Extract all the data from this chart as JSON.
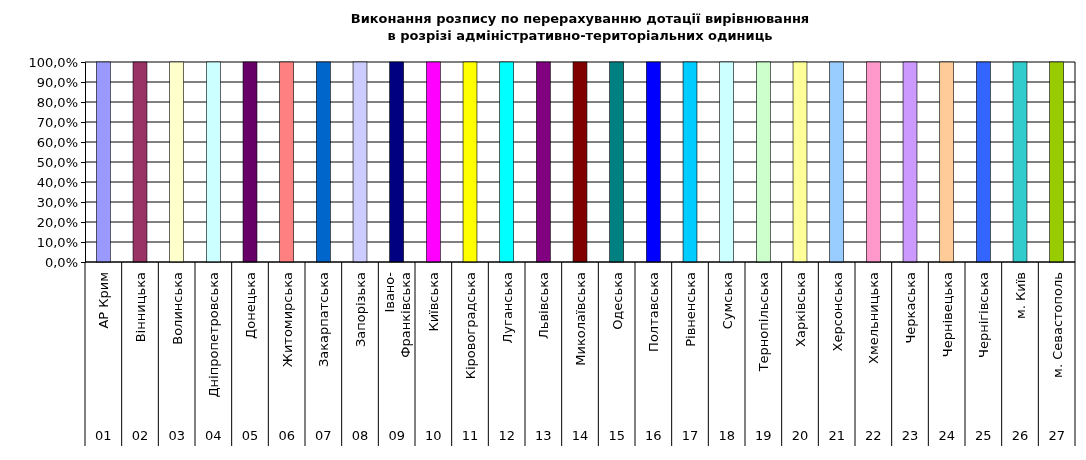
{
  "chart_data": {
    "type": "bar",
    "title": "Виконання розпису по перерахуванню дотації вирівнювання\nв розрізі адміністративно-територіальних одиниць",
    "categories": [
      "АР Крим",
      "Вінницька",
      "Волинська",
      "Дніпропетровська",
      "Донецька",
      "Житомирська",
      "Закарпатська",
      "Запорізька",
      "Івано-Франківська",
      "Київська",
      "Кіровоградська",
      "Луганська",
      "Львівська",
      "Миколаївська",
      "Одеська",
      "Полтавська",
      "Рівненська",
      "Сумська",
      "Тернопільська",
      "Харківська",
      "Херсонська",
      "Хмельницька",
      "Черкаська",
      "Чернівецька",
      "Чернігівська",
      "м. Київ",
      "м. Севастополь"
    ],
    "annotations": [
      "01",
      "02",
      "03",
      "04",
      "05",
      "06",
      "07",
      "08",
      "09",
      "10",
      "11",
      "12",
      "13",
      "14",
      "15",
      "16",
      "17",
      "18",
      "19",
      "20",
      "21",
      "22",
      "23",
      "24",
      "25",
      "26",
      "27"
    ],
    "values": [
      100,
      100,
      100,
      100,
      100,
      100,
      100,
      100,
      100,
      100,
      100,
      100,
      100,
      100,
      100,
      100,
      100,
      100,
      100,
      100,
      100,
      100,
      100,
      100,
      100,
      100,
      100
    ],
    "colors": [
      "#9999ff",
      "#993366",
      "#ffffcc",
      "#ccffff",
      "#660066",
      "#ff8080",
      "#0066cc",
      "#ccccff",
      "#000080",
      "#ff00ff",
      "#ffff00",
      "#00ffff",
      "#800080",
      "#800000",
      "#008080",
      "#0000ff",
      "#00ccff",
      "#ccffff",
      "#ccffcc",
      "#ffff99",
      "#99ccff",
      "#ff99cc",
      "#cc99ff",
      "#ffcc99",
      "#3366ff",
      "#33cccc",
      "#99cc00"
    ],
    "ylim": [
      0,
      100
    ],
    "yticks": [
      {
        "value": 0,
        "label": "0,0%"
      },
      {
        "value": 10,
        "label": "10,0%"
      },
      {
        "value": 20,
        "label": "20,0%"
      },
      {
        "value": 30,
        "label": "30,0%"
      },
      {
        "value": 40,
        "label": "40,0%"
      },
      {
        "value": 50,
        "label": "50,0%"
      },
      {
        "value": 60,
        "label": "60,0%"
      },
      {
        "value": 70,
        "label": "70,0%"
      },
      {
        "value": 80,
        "label": "80,0%"
      },
      {
        "value": 90,
        "label": "90,0%"
      },
      {
        "value": 100,
        "label": "100,0%"
      }
    ],
    "grid": "y"
  }
}
